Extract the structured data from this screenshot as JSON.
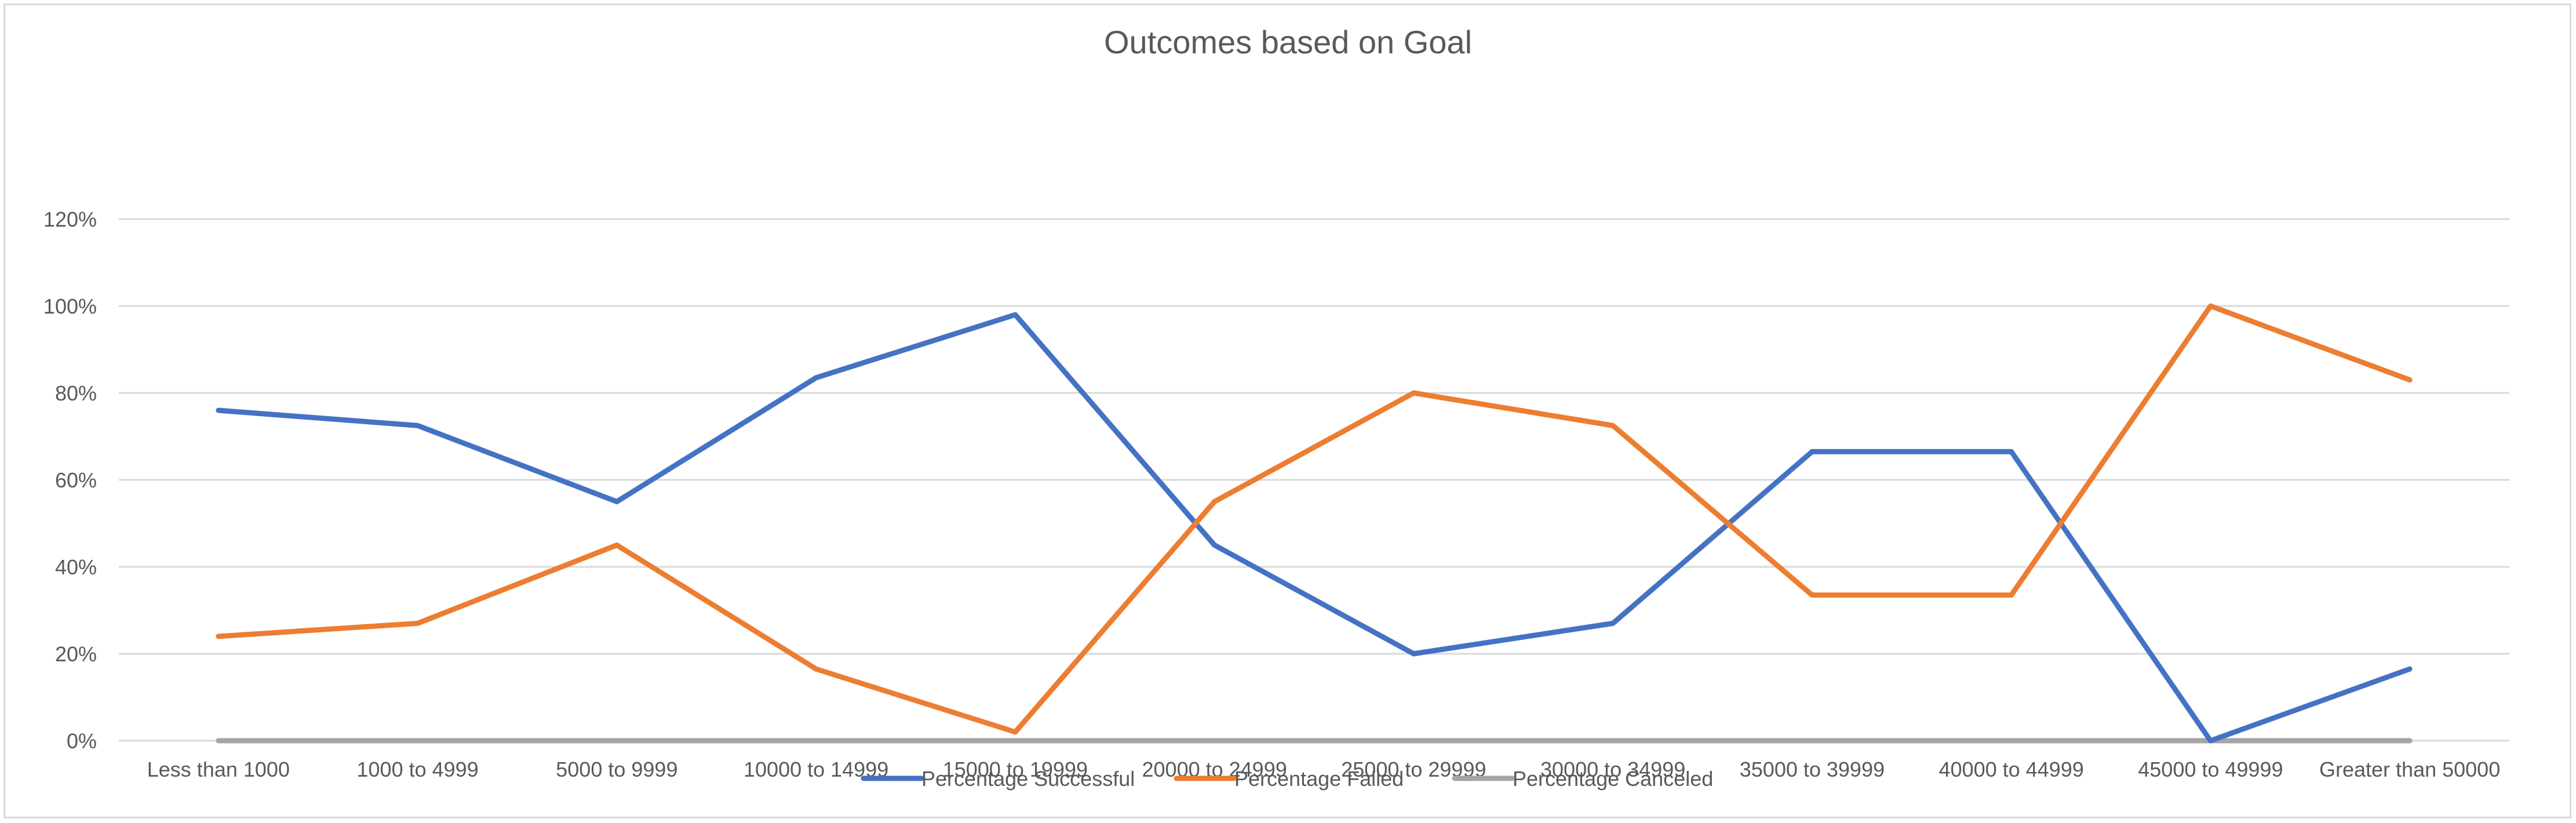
{
  "chart_data": {
    "type": "line",
    "title": "Outcomes based on Goal",
    "xlabel": "",
    "ylabel": "",
    "ylim": [
      0,
      1.2
    ],
    "y_ticks": [
      0,
      0.2,
      0.4,
      0.6,
      0.8,
      1.0,
      1.2
    ],
    "y_tick_labels": [
      "0%",
      "20%",
      "40%",
      "60%",
      "80%",
      "100%",
      "120%"
    ],
    "grid": true,
    "legend_position": "bottom",
    "categories": [
      "Less than 1000",
      "1000 to 4999",
      "5000 to 9999",
      "10000 to 14999",
      "15000 to 19999",
      "20000 to 24999",
      "25000 to 29999",
      "30000 to 34999",
      "35000 to 39999",
      "40000 to 44999",
      "45000 to 49999",
      "Greater than 50000"
    ],
    "series": [
      {
        "name": "Percentage Successful",
        "color": "#4472C4",
        "values": [
          0.76,
          0.725,
          0.55,
          0.835,
          0.98,
          0.45,
          0.2,
          0.27,
          0.665,
          0.665,
          0.0,
          0.165
        ]
      },
      {
        "name": "Percentage Failed",
        "color": "#ED7D31",
        "values": [
          0.24,
          0.27,
          0.45,
          0.165,
          0.02,
          0.55,
          0.8,
          0.725,
          0.335,
          0.335,
          1.0,
          0.83
        ]
      },
      {
        "name": "Percentage Canceled",
        "color": "#A5A5A5",
        "values": [
          0,
          0,
          0,
          0,
          0,
          0,
          0,
          0,
          0,
          0,
          0,
          0
        ]
      }
    ]
  }
}
